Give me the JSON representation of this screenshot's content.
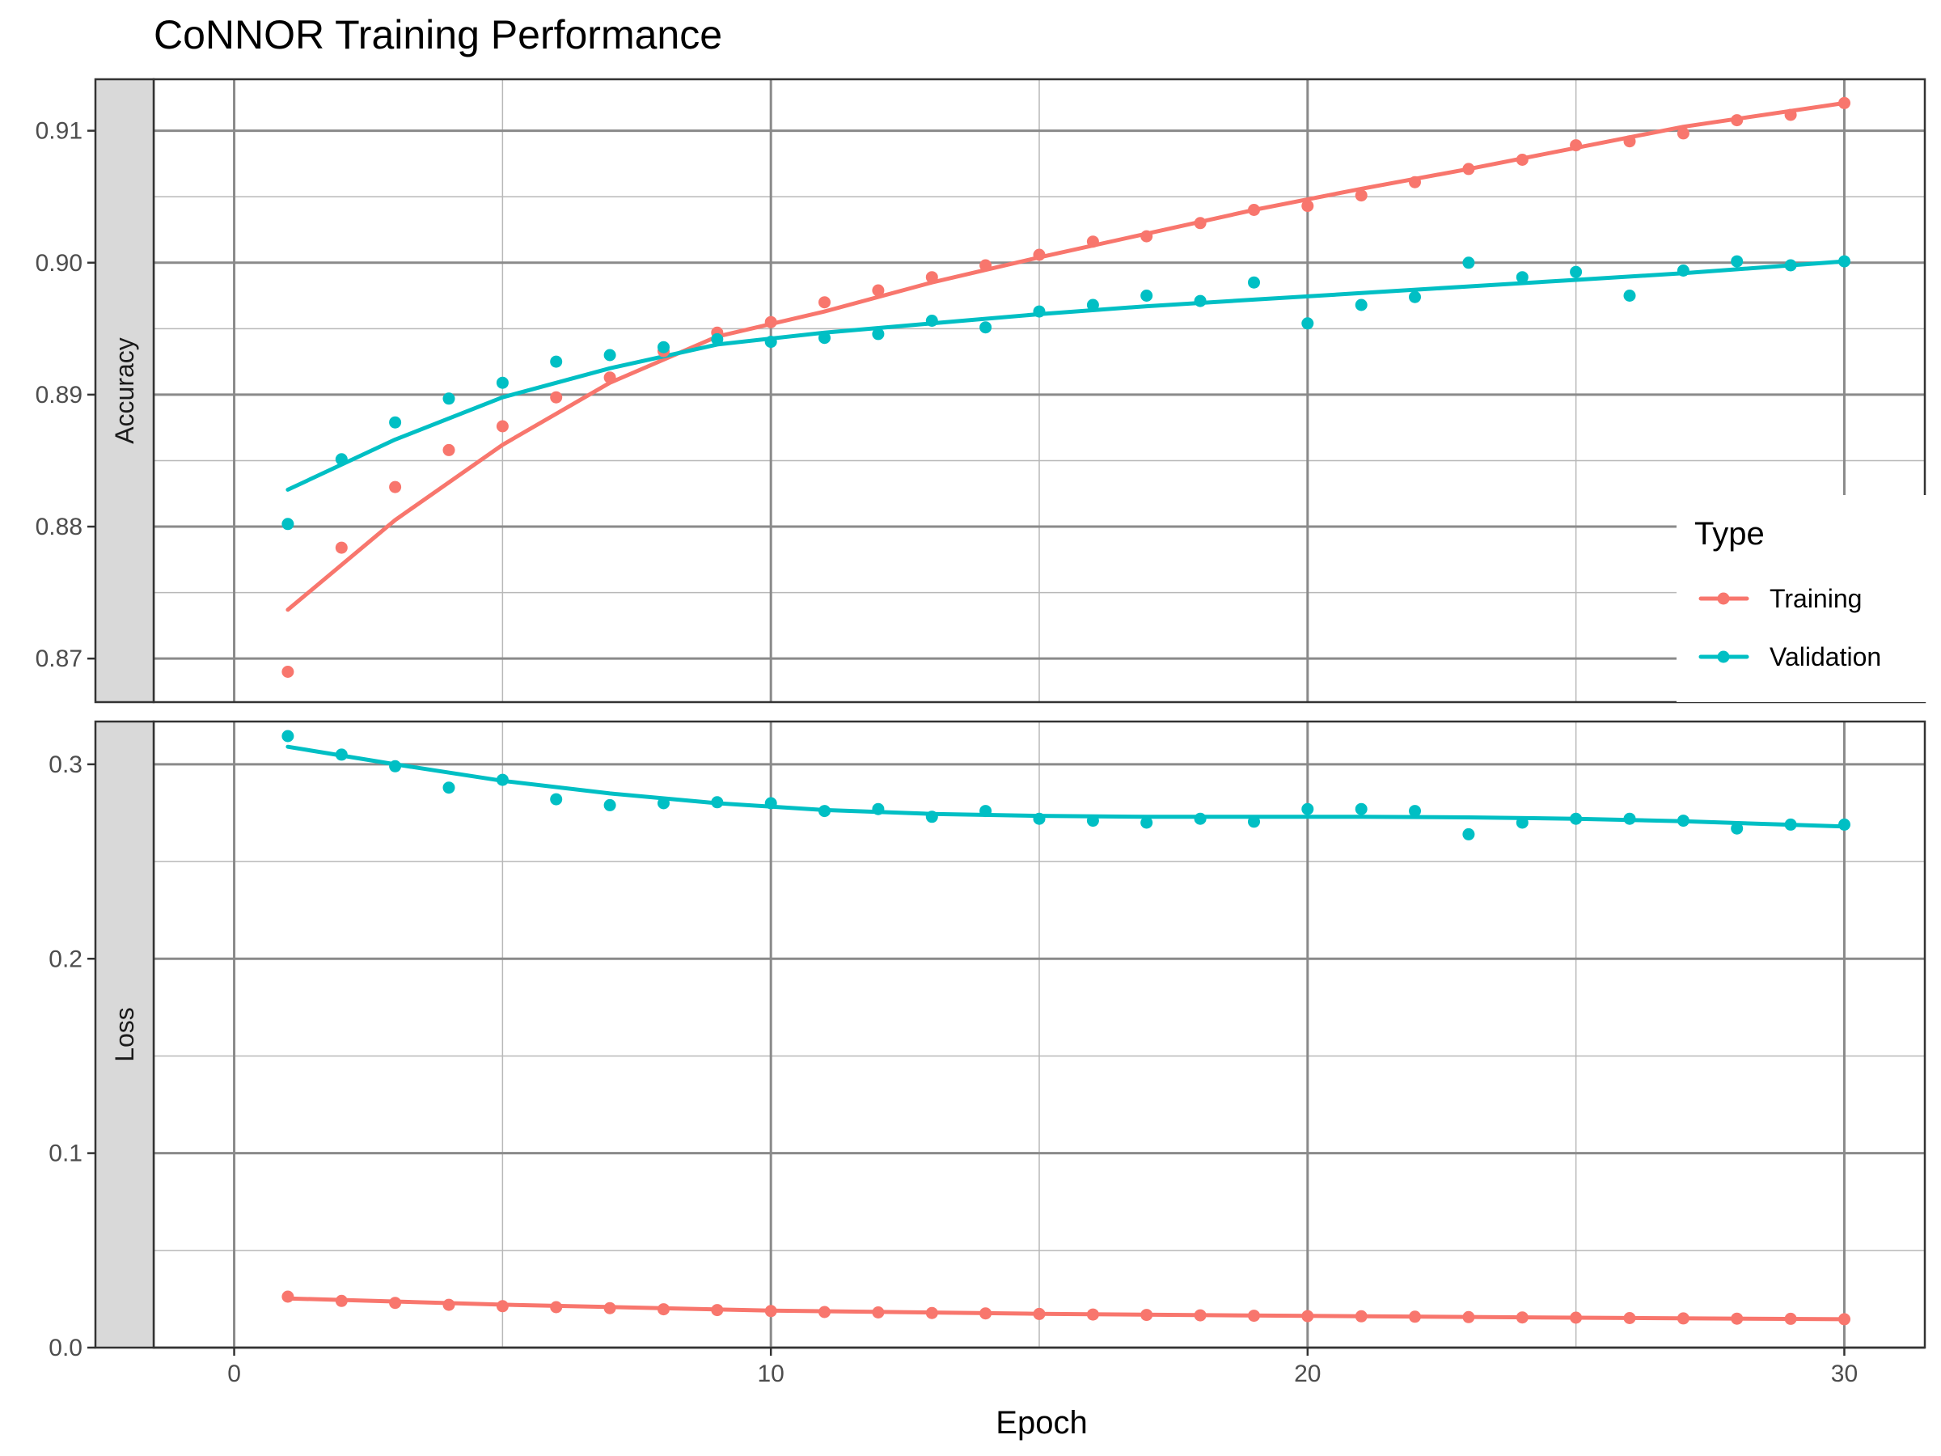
{
  "chart_data": {
    "type": "line",
    "title": "CoNNOR Training Performance",
    "xlabel": "Epoch",
    "x_ticks": [
      "0",
      "10",
      "20",
      "30"
    ],
    "xlim": [
      -1.5,
      31.5
    ],
    "legend": {
      "title": "Type",
      "placement": "right",
      "entries": [
        "Training",
        "Validation"
      ]
    },
    "colors": {
      "Training": "#F8766D",
      "Validation": "#00BFC4"
    },
    "grid": true,
    "panels": [
      {
        "name": "Accuracy",
        "ylim": [
          0.8667,
          0.9139
        ],
        "y_ticks": [
          "0.87",
          "0.88",
          "0.89",
          "0.90",
          "0.91"
        ],
        "series": [
          {
            "name": "Training",
            "points": [
              [
                1,
                0.869
              ],
              [
                2,
                0.8784
              ],
              [
                3,
                0.883
              ],
              [
                4,
                0.8858
              ],
              [
                5,
                0.8876
              ],
              [
                6,
                0.8898
              ],
              [
                7,
                0.8913
              ],
              [
                8,
                0.8933
              ],
              [
                9,
                0.8947
              ],
              [
                10,
                0.8955
              ],
              [
                11,
                0.897
              ],
              [
                12,
                0.8979
              ],
              [
                13,
                0.8989
              ],
              [
                14,
                0.8998
              ],
              [
                15,
                0.9006
              ],
              [
                16,
                0.9016
              ],
              [
                17,
                0.902
              ],
              [
                18,
                0.903
              ],
              [
                19,
                0.904
              ],
              [
                20,
                0.9043
              ],
              [
                21,
                0.9051
              ],
              [
                22,
                0.9061
              ],
              [
                23,
                0.9071
              ],
              [
                24,
                0.9078
              ],
              [
                25,
                0.9089
              ],
              [
                26,
                0.9092
              ],
              [
                27,
                0.9098
              ],
              [
                28,
                0.9108
              ],
              [
                29,
                0.9112
              ],
              [
                30,
                0.9121
              ]
            ],
            "trend": [
              [
                1,
                0.8737
              ],
              [
                3,
                0.8805
              ],
              [
                5,
                0.8862
              ],
              [
                7,
                0.8909
              ],
              [
                9,
                0.8944
              ],
              [
                11,
                0.8963
              ],
              [
                13,
                0.8985
              ],
              [
                15,
                0.9004
              ],
              [
                17,
                0.9022
              ],
              [
                19,
                0.904
              ],
              [
                21,
                0.9056
              ],
              [
                23,
                0.9071
              ],
              [
                25,
                0.9087
              ],
              [
                27,
                0.9103
              ],
              [
                30,
                0.9121
              ]
            ]
          },
          {
            "name": "Validation",
            "points": [
              [
                1,
                0.8802
              ],
              [
                2,
                0.8851
              ],
              [
                3,
                0.8879
              ],
              [
                4,
                0.8897
              ],
              [
                5,
                0.8909
              ],
              [
                6,
                0.8925
              ],
              [
                7,
                0.893
              ],
              [
                8,
                0.8936
              ],
              [
                9,
                0.8942
              ],
              [
                10,
                0.894
              ],
              [
                11,
                0.8943
              ],
              [
                12,
                0.8946
              ],
              [
                13,
                0.8956
              ],
              [
                14,
                0.8951
              ],
              [
                15,
                0.8963
              ],
              [
                16,
                0.8968
              ],
              [
                17,
                0.8975
              ],
              [
                18,
                0.8971
              ],
              [
                19,
                0.8985
              ],
              [
                20,
                0.8954
              ],
              [
                21,
                0.8968
              ],
              [
                22,
                0.8974
              ],
              [
                23,
                0.9
              ],
              [
                24,
                0.8989
              ],
              [
                25,
                0.8993
              ],
              [
                26,
                0.8975
              ],
              [
                27,
                0.8994
              ],
              [
                28,
                0.9001
              ],
              [
                29,
                0.8998
              ],
              [
                30,
                0.9001
              ]
            ],
            "trend": [
              [
                1,
                0.8828
              ],
              [
                3,
                0.8866
              ],
              [
                5,
                0.8898
              ],
              [
                7,
                0.892
              ],
              [
                9,
                0.8938
              ],
              [
                11,
                0.8947
              ],
              [
                13,
                0.8954
              ],
              [
                15,
                0.8961
              ],
              [
                17,
                0.8967
              ],
              [
                19,
                0.8972
              ],
              [
                21,
                0.8977
              ],
              [
                23,
                0.8982
              ],
              [
                25,
                0.8987
              ],
              [
                27,
                0.8992
              ],
              [
                30,
                0.9001
              ]
            ]
          }
        ]
      },
      {
        "name": "Loss",
        "ylim": [
          0,
          0.322
        ],
        "y_ticks": [
          "0.0",
          "0.1",
          "0.2",
          "0.3"
        ],
        "series": [
          {
            "name": "Training",
            "points": [
              [
                1,
                0.0262
              ],
              [
                2,
                0.024
              ],
              [
                3,
                0.023
              ],
              [
                4,
                0.022
              ],
              [
                5,
                0.0213
              ],
              [
                6,
                0.0208
              ],
              [
                7,
                0.0203
              ],
              [
                8,
                0.0197
              ],
              [
                9,
                0.0193
              ],
              [
                10,
                0.0188
              ],
              [
                11,
                0.0183
              ],
              [
                12,
                0.0181
              ],
              [
                13,
                0.0178
              ],
              [
                14,
                0.0176
              ],
              [
                15,
                0.0173
              ],
              [
                16,
                0.017
              ],
              [
                17,
                0.0168
              ],
              [
                18,
                0.0166
              ],
              [
                19,
                0.0164
              ],
              [
                20,
                0.0162
              ],
              [
                21,
                0.0161
              ],
              [
                22,
                0.0159
              ],
              [
                23,
                0.0157
              ],
              [
                24,
                0.0155
              ],
              [
                25,
                0.0154
              ],
              [
                26,
                0.0152
              ],
              [
                27,
                0.015
              ],
              [
                28,
                0.0149
              ],
              [
                29,
                0.0148
              ],
              [
                30,
                0.0146
              ]
            ],
            "trend": [
              [
                1,
                0.0253
              ],
              [
                5,
                0.0221
              ],
              [
                10,
                0.019
              ],
              [
                15,
                0.0174
              ],
              [
                20,
                0.0163
              ],
              [
                25,
                0.0154
              ],
              [
                30,
                0.0146
              ]
            ]
          },
          {
            "name": "Validation",
            "points": [
              [
                1,
                0.3145
              ],
              [
                2,
                0.305
              ],
              [
                3,
                0.299
              ],
              [
                4,
                0.288
              ],
              [
                5,
                0.292
              ],
              [
                6,
                0.282
              ],
              [
                7,
                0.279
              ],
              [
                8,
                0.28
              ],
              [
                9,
                0.2805
              ],
              [
                10,
                0.28
              ],
              [
                11,
                0.276
              ],
              [
                12,
                0.277
              ],
              [
                13,
                0.273
              ],
              [
                14,
                0.276
              ],
              [
                15,
                0.272
              ],
              [
                16,
                0.271
              ],
              [
                17,
                0.27
              ],
              [
                18,
                0.272
              ],
              [
                19,
                0.2705
              ],
              [
                20,
                0.277
              ],
              [
                21,
                0.277
              ],
              [
                22,
                0.276
              ],
              [
                23,
                0.264
              ],
              [
                24,
                0.27
              ],
              [
                25,
                0.272
              ],
              [
                26,
                0.272
              ],
              [
                27,
                0.271
              ],
              [
                28,
                0.267
              ],
              [
                29,
                0.269
              ],
              [
                30,
                0.269
              ]
            ],
            "trend": [
              [
                1,
                0.309
              ],
              [
                3,
                0.3
              ],
              [
                5,
                0.2915
              ],
              [
                7,
                0.285
              ],
              [
                9,
                0.28
              ],
              [
                11,
                0.2765
              ],
              [
                13,
                0.2745
              ],
              [
                15,
                0.2735
              ],
              [
                17,
                0.273
              ],
              [
                19,
                0.273
              ],
              [
                21,
                0.273
              ],
              [
                23,
                0.2727
              ],
              [
                25,
                0.272
              ],
              [
                27,
                0.2707
              ],
              [
                30,
                0.268
              ]
            ]
          }
        ]
      }
    ]
  }
}
